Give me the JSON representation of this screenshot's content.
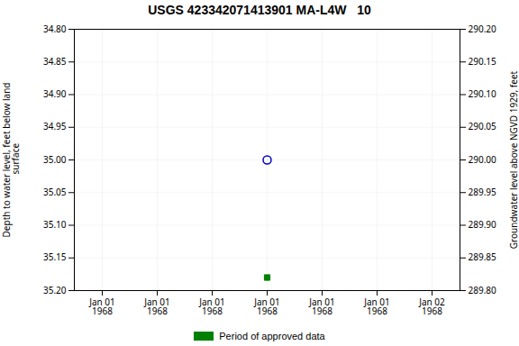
{
  "chart_data": {
    "type": "scatter",
    "title": "USGS 423342071413901 MA-L4W   10",
    "ylabel": "Depth to water level, feet below land\n surface",
    "y2label": "Groundwater level above NGVD 1929, feet",
    "categories": [
      "Jan 01\n1968",
      "Jan 01\n1968",
      "Jan 01\n1968",
      "Jan 01\n1968",
      "Jan 01\n1968",
      "Jan 01\n1968",
      "Jan 02\n1968"
    ],
    "series": [
      {
        "values": [
          null,
          null,
          null,
          35.0,
          null,
          null,
          null
        ],
        "color": "#0000cc",
        "marker": "circle-open"
      },
      {
        "name": "Period of approved data",
        "values": [
          null,
          null,
          null,
          35.18,
          null,
          null,
          null
        ],
        "color": "#008000",
        "marker": "square"
      }
    ],
    "ylim": [
      35.2,
      34.8
    ],
    "yticks": [
      {
        "value": 34.8,
        "label": "34.80"
      },
      {
        "value": 34.85,
        "label": "34.85"
      },
      {
        "value": 34.9,
        "label": "34.90"
      },
      {
        "value": 34.95,
        "label": "34.95"
      },
      {
        "value": 35.0,
        "label": "35.00"
      },
      {
        "value": 35.05,
        "label": "35.05"
      },
      {
        "value": 35.1,
        "label": "35.10"
      },
      {
        "value": 35.15,
        "label": "35.15"
      },
      {
        "value": 35.2,
        "label": "35.20"
      }
    ],
    "y2lim": [
      289.8,
      290.2
    ],
    "y2ticks": [
      {
        "value": 290.2,
        "label": "290.20"
      },
      {
        "value": 290.15,
        "label": "290.15"
      },
      {
        "value": 290.1,
        "label": "290.10"
      },
      {
        "value": 290.05,
        "label": "290.05"
      },
      {
        "value": 290.0,
        "label": "290.00"
      },
      {
        "value": 289.95,
        "label": "289.95"
      },
      {
        "value": 289.9,
        "label": "289.90"
      },
      {
        "value": 289.85,
        "label": "289.85"
      },
      {
        "value": 289.8,
        "label": "289.80"
      }
    ],
    "grid": true,
    "legend": "bottom"
  }
}
